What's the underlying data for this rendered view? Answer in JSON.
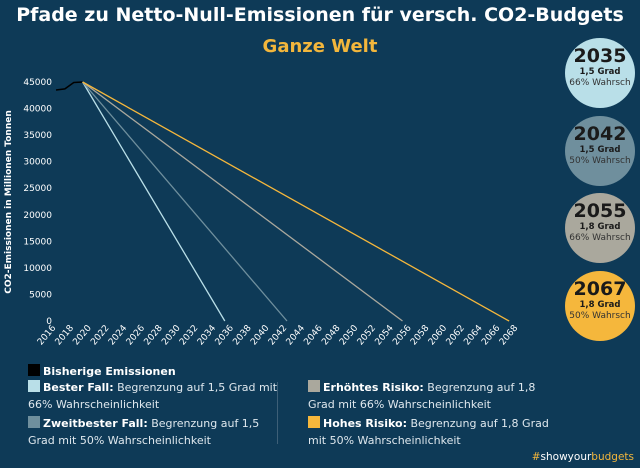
{
  "header": {
    "title": "Pfade zu Netto-Null-Emissionen für versch. CO2-Budgets",
    "subtitle": "Ganze Welt"
  },
  "chart_data": {
    "type": "line",
    "ylabel": "CO2-Emissionen in Millionen Tonnen",
    "xlabel": "",
    "xlim": [
      2016,
      2068
    ],
    "ylim": [
      0,
      45000
    ],
    "x_ticks": [
      2016,
      2018,
      2020,
      2022,
      2024,
      2026,
      2028,
      2030,
      2032,
      2034,
      2036,
      2038,
      2040,
      2042,
      2044,
      2046,
      2048,
      2050,
      2052,
      2054,
      2056,
      2058,
      2060,
      2062,
      2064,
      2066,
      2068
    ],
    "y_ticks": [
      0,
      5000,
      10000,
      15000,
      20000,
      25000,
      30000,
      35000,
      40000,
      45000
    ],
    "grid": false,
    "legend_position": "bottom",
    "series": [
      {
        "name": "Bisherige Emissionen",
        "color": "#000000",
        "x": [
          2016,
          2017,
          2018,
          2019
        ],
        "y": [
          43500,
          43700,
          44900,
          45000
        ]
      },
      {
        "name": "Bester Fall",
        "color": "#b9dfe8",
        "x": [
          2019,
          2035
        ],
        "y": [
          45000,
          0
        ]
      },
      {
        "name": "Zweitbester Fall",
        "color": "#6f8f9d",
        "x": [
          2019,
          2042
        ],
        "y": [
          45000,
          0
        ]
      },
      {
        "name": "Erhöhtes Risiko",
        "color": "#aaa89d",
        "x": [
          2019,
          2055
        ],
        "y": [
          45000,
          0
        ]
      },
      {
        "name": "Hohes Risiko",
        "color": "#f5b73c",
        "x": [
          2019,
          2067
        ],
        "y": [
          45000,
          0
        ]
      }
    ]
  },
  "circles": [
    {
      "year": "2035",
      "deg": "1,5 Grad",
      "prob": "66% Wahrsch",
      "color": "#b9dfe8"
    },
    {
      "year": "2042",
      "deg": "1,5 Grad",
      "prob": "50% Wahrsch",
      "color": "#6f8f9d"
    },
    {
      "year": "2055",
      "deg": "1,8 Grad",
      "prob": "66% Wahrsch",
      "color": "#aaa89d"
    },
    {
      "year": "2067",
      "deg": "1,8 Grad",
      "prob": "50% Wahrsch",
      "color": "#f5b73c"
    }
  ],
  "legend": {
    "hist": {
      "label": "Bisherige Emissionen"
    },
    "best": {
      "label": "Bester Fall:",
      "text": " Begrenzung auf 1,5 Grad mit 66% Wahrscheinlichkeit"
    },
    "second": {
      "label": "Zweitbester Fall:",
      "text": " Begrenzung auf 1,5 Grad mit 50% Wahrscheinlichkeit"
    },
    "risk": {
      "label": "Erhöhtes Risiko:",
      "text": " Begrenzung auf 1,8 Grad mit 66% Wahrscheinlichkeit"
    },
    "high": {
      "label": "Hohes Risiko:",
      "text": " Begrenzung auf 1,8 Grad mit 50% Wahrscheinlichkeit"
    }
  },
  "footer": {
    "hash": "#",
    "show": "showyour",
    "budgets": "budgets"
  }
}
